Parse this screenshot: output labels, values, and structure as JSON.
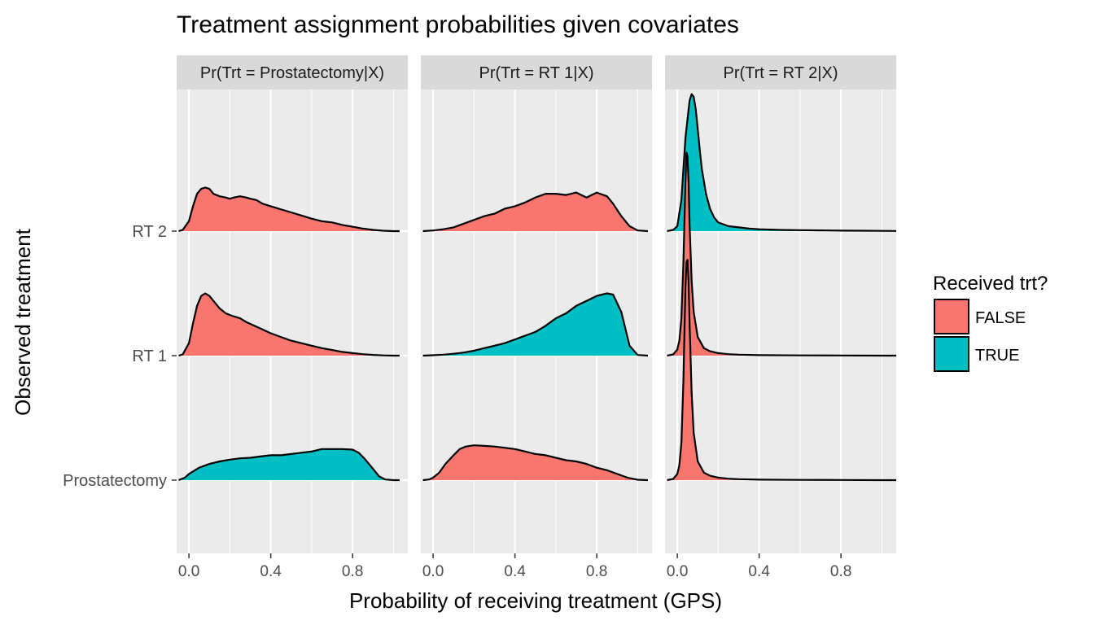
{
  "chart_data": {
    "type": "area",
    "title": "Treatment assignment probabilities given covariates",
    "xlabel": "Probability of receiving treatment (GPS)",
    "ylabel": "Observed treatment",
    "xlim": [
      -0.06,
      1.07
    ],
    "x_ticks": [
      0.0,
      0.4,
      0.8
    ],
    "x_tick_labels": [
      "0.0",
      "0.4",
      "0.8"
    ],
    "y_categories": [
      "Prostatectomy",
      "RT 1",
      "RT 2"
    ],
    "grid": true,
    "legend": {
      "title": "Received trt?",
      "placement": "right",
      "entries": [
        {
          "label": "FALSE",
          "color": "#F8766D"
        },
        {
          "label": "TRUE",
          "color": "#00BFC4"
        }
      ]
    },
    "colors": {
      "FALSE": "#F8766D",
      "TRUE": "#00BFC4",
      "panel_bg": "#EBEBEB",
      "strip_bg": "#D9D9D9"
    },
    "density_scale_note": "height in units of category spacing",
    "facets": [
      {
        "strip": "Pr(Trt = Prostatectomy|X)",
        "ridges": [
          {
            "category": "RT 2",
            "received": "FALSE",
            "x": [
              -0.05,
              -0.03,
              0.0,
              0.02,
              0.04,
              0.06,
              0.08,
              0.1,
              0.12,
              0.15,
              0.18,
              0.2,
              0.22,
              0.25,
              0.28,
              0.3,
              0.33,
              0.36,
              0.4,
              0.44,
              0.48,
              0.52,
              0.56,
              0.6,
              0.65,
              0.7,
              0.75,
              0.8,
              0.85,
              0.9,
              0.95,
              1.0,
              1.03
            ],
            "y": [
              0.0,
              0.01,
              0.08,
              0.2,
              0.3,
              0.34,
              0.35,
              0.34,
              0.3,
              0.28,
              0.27,
              0.26,
              0.27,
              0.28,
              0.27,
              0.26,
              0.25,
              0.22,
              0.2,
              0.18,
              0.16,
              0.14,
              0.12,
              0.1,
              0.08,
              0.07,
              0.05,
              0.035,
              0.02,
              0.01,
              0.003,
              0.0,
              0.0
            ]
          },
          {
            "category": "RT 1",
            "received": "FALSE",
            "x": [
              -0.05,
              -0.03,
              0.0,
              0.02,
              0.04,
              0.06,
              0.08,
              0.1,
              0.12,
              0.15,
              0.18,
              0.21,
              0.25,
              0.28,
              0.32,
              0.36,
              0.4,
              0.45,
              0.5,
              0.55,
              0.6,
              0.65,
              0.7,
              0.75,
              0.8,
              0.85,
              0.9,
              0.95,
              1.0,
              1.03
            ],
            "y": [
              0.0,
              0.01,
              0.1,
              0.26,
              0.4,
              0.48,
              0.5,
              0.48,
              0.44,
              0.38,
              0.34,
              0.32,
              0.3,
              0.27,
              0.24,
              0.21,
              0.18,
              0.15,
              0.12,
              0.1,
              0.08,
              0.06,
              0.045,
              0.03,
              0.02,
              0.012,
              0.006,
              0.002,
              0.0,
              0.0
            ]
          },
          {
            "category": "Prostatectomy",
            "received": "TRUE",
            "x": [
              -0.05,
              -0.02,
              0.0,
              0.05,
              0.1,
              0.15,
              0.2,
              0.25,
              0.3,
              0.35,
              0.4,
              0.45,
              0.5,
              0.55,
              0.6,
              0.65,
              0.7,
              0.75,
              0.8,
              0.83,
              0.86,
              0.9,
              0.93,
              0.96,
              1.0,
              1.03
            ],
            "y": [
              0.0,
              0.02,
              0.05,
              0.1,
              0.13,
              0.15,
              0.165,
              0.175,
              0.18,
              0.19,
              0.2,
              0.2,
              0.21,
              0.22,
              0.23,
              0.25,
              0.25,
              0.25,
              0.245,
              0.22,
              0.17,
              0.09,
              0.03,
              0.005,
              0.0,
              0.0
            ]
          }
        ]
      },
      {
        "strip": "Pr(Trt = RT 1|X)",
        "ridges": [
          {
            "category": "RT 2",
            "received": "FALSE",
            "x": [
              -0.05,
              0.0,
              0.05,
              0.1,
              0.15,
              0.2,
              0.25,
              0.3,
              0.35,
              0.4,
              0.45,
              0.5,
              0.55,
              0.6,
              0.65,
              0.7,
              0.75,
              0.8,
              0.85,
              0.88,
              0.92,
              0.96,
              1.0,
              1.05
            ],
            "y": [
              0.0,
              0.005,
              0.015,
              0.03,
              0.06,
              0.09,
              0.12,
              0.14,
              0.18,
              0.2,
              0.23,
              0.27,
              0.3,
              0.3,
              0.29,
              0.31,
              0.27,
              0.31,
              0.28,
              0.22,
              0.12,
              0.04,
              0.005,
              0.0
            ]
          },
          {
            "category": "RT 1",
            "received": "TRUE",
            "x": [
              -0.05,
              0.0,
              0.05,
              0.1,
              0.15,
              0.2,
              0.25,
              0.3,
              0.35,
              0.4,
              0.45,
              0.5,
              0.55,
              0.6,
              0.65,
              0.7,
              0.75,
              0.8,
              0.85,
              0.88,
              0.92,
              0.96,
              1.0,
              1.05
            ],
            "y": [
              0.0,
              0.003,
              0.008,
              0.015,
              0.025,
              0.04,
              0.06,
              0.08,
              0.1,
              0.13,
              0.16,
              0.19,
              0.24,
              0.3,
              0.34,
              0.4,
              0.44,
              0.48,
              0.5,
              0.49,
              0.35,
              0.08,
              0.005,
              0.0
            ]
          },
          {
            "category": "Prostatectomy",
            "received": "FALSE",
            "x": [
              -0.05,
              -0.02,
              0.0,
              0.03,
              0.06,
              0.1,
              0.13,
              0.16,
              0.2,
              0.25,
              0.3,
              0.35,
              0.4,
              0.45,
              0.5,
              0.55,
              0.6,
              0.65,
              0.7,
              0.75,
              0.8,
              0.85,
              0.9,
              0.95,
              1.0,
              1.05
            ],
            "y": [
              0.0,
              0.005,
              0.02,
              0.06,
              0.13,
              0.2,
              0.25,
              0.27,
              0.28,
              0.275,
              0.27,
              0.26,
              0.25,
              0.23,
              0.21,
              0.2,
              0.18,
              0.16,
              0.15,
              0.13,
              0.1,
              0.08,
              0.05,
              0.02,
              0.003,
              0.0
            ]
          }
        ]
      },
      {
        "strip": "Pr(Trt = RT 2|X)",
        "ridges": [
          {
            "category": "RT 2",
            "received": "TRUE",
            "x": [
              -0.05,
              -0.02,
              0.0,
              0.02,
              0.04,
              0.06,
              0.07,
              0.08,
              0.09,
              0.1,
              0.11,
              0.12,
              0.14,
              0.16,
              0.18,
              0.2,
              0.25,
              0.3,
              0.35,
              0.4,
              0.5,
              0.6,
              0.7,
              0.8,
              0.9,
              1.0,
              1.07
            ],
            "y": [
              0.0,
              0.01,
              0.04,
              0.25,
              0.75,
              1.05,
              1.1,
              1.08,
              0.98,
              0.82,
              0.65,
              0.5,
              0.3,
              0.18,
              0.11,
              0.07,
              0.04,
              0.03,
              0.02,
              0.015,
              0.01,
              0.008,
              0.006,
              0.004,
              0.003,
              0.002,
              0.001
            ]
          },
          {
            "category": "RT 1",
            "received": "FALSE",
            "x": [
              -0.05,
              -0.02,
              0.0,
              0.01,
              0.02,
              0.03,
              0.04,
              0.045,
              0.05,
              0.055,
              0.06,
              0.07,
              0.08,
              0.1,
              0.13,
              0.16,
              0.2,
              0.25,
              0.3,
              0.4,
              0.6,
              0.8,
              1.0,
              1.07
            ],
            "y": [
              0.0,
              0.01,
              0.05,
              0.12,
              0.3,
              0.75,
              1.4,
              1.63,
              1.6,
              1.4,
              1.05,
              0.6,
              0.35,
              0.15,
              0.06,
              0.035,
              0.02,
              0.012,
              0.008,
              0.004,
              0.002,
              0.001,
              0.0,
              0.0
            ]
          },
          {
            "category": "Prostatectomy",
            "received": "FALSE",
            "x": [
              -0.05,
              -0.02,
              0.0,
              0.01,
              0.02,
              0.03,
              0.035,
              0.04,
              0.045,
              0.05,
              0.055,
              0.06,
              0.07,
              0.08,
              0.1,
              0.13,
              0.16,
              0.2,
              0.25,
              0.3,
              0.4,
              0.6,
              0.8,
              1.0,
              1.07
            ],
            "y": [
              0.0,
              0.01,
              0.05,
              0.12,
              0.3,
              0.8,
              1.2,
              1.55,
              1.75,
              1.77,
              1.6,
              1.25,
              0.7,
              0.38,
              0.15,
              0.06,
              0.035,
              0.02,
              0.012,
              0.008,
              0.004,
              0.002,
              0.001,
              0.0,
              0.0
            ]
          }
        ]
      }
    ]
  }
}
